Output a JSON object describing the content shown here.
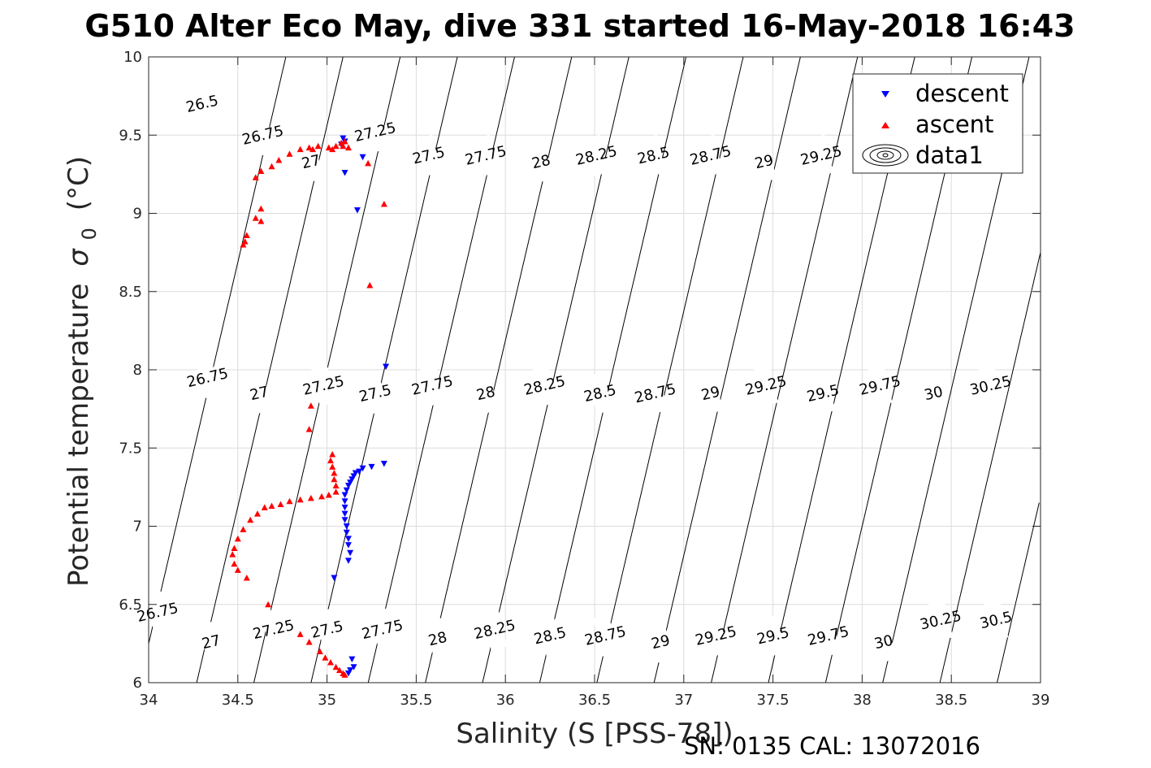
{
  "chart_data": {
    "type": "scatter",
    "title": "G510 Alter Eco May, dive 331 started 16-May-2018 16:43",
    "xlabel": "Salinity (S [PSS-78])",
    "ylabel": "Potential temperature",
    "ylabel_symbol": "σ",
    "ylabel_subscript": "0",
    "ylabel_unit": "(°C)",
    "xlim": [
      34,
      39
    ],
    "ylim": [
      6,
      10
    ],
    "xticks": [
      34,
      34.5,
      35,
      35.5,
      36,
      36.5,
      37,
      37.5,
      38,
      38.5,
      39
    ],
    "xtick_labels": [
      "34",
      "34.5",
      "35",
      "35.5",
      "36",
      "36.5",
      "37",
      "37.5",
      "38",
      "38.5",
      "39"
    ],
    "yticks": [
      6,
      6.5,
      7,
      7.5,
      8,
      8.5,
      9,
      9.5,
      10
    ],
    "ytick_labels": [
      "6",
      "6.5",
      "7",
      "7.5",
      "8",
      "8.5",
      "9",
      "9.5",
      "10"
    ],
    "grid": true,
    "legend_position": "top-right",
    "series": [
      {
        "name": "descent",
        "marker": "down-triangle",
        "color": "#0000ff",
        "points": [
          [
            35.09,
            9.48
          ],
          [
            35.1,
            9.46
          ],
          [
            35.08,
            9.44
          ],
          [
            35.2,
            9.36
          ],
          [
            35.1,
            9.26
          ],
          [
            35.17,
            9.02
          ],
          [
            35.33,
            8.02
          ],
          [
            35.32,
            7.4
          ],
          [
            35.25,
            7.38
          ],
          [
            35.2,
            7.37
          ],
          [
            35.18,
            7.35
          ],
          [
            35.16,
            7.34
          ],
          [
            35.15,
            7.32
          ],
          [
            35.14,
            7.3
          ],
          [
            35.13,
            7.28
          ],
          [
            35.12,
            7.26
          ],
          [
            35.11,
            7.23
          ],
          [
            35.1,
            7.2
          ],
          [
            35.1,
            7.16
          ],
          [
            35.1,
            7.12
          ],
          [
            35.1,
            7.08
          ],
          [
            35.1,
            7.04
          ],
          [
            35.11,
            7.0
          ],
          [
            35.11,
            6.96
          ],
          [
            35.12,
            6.92
          ],
          [
            35.12,
            6.88
          ],
          [
            35.13,
            6.83
          ],
          [
            35.12,
            6.78
          ],
          [
            35.04,
            6.67
          ],
          [
            35.14,
            6.15
          ],
          [
            35.15,
            6.1
          ],
          [
            35.13,
            6.08
          ],
          [
            35.12,
            6.06
          ]
        ]
      },
      {
        "name": "ascent",
        "marker": "up-triangle",
        "color": "#ff0000",
        "points": [
          [
            35.1,
            9.46
          ],
          [
            35.08,
            9.45
          ],
          [
            35.09,
            9.43
          ],
          [
            35.12,
            9.42
          ],
          [
            35.05,
            9.43
          ],
          [
            35.03,
            9.41
          ],
          [
            35.01,
            9.42
          ],
          [
            34.95,
            9.43
          ],
          [
            34.9,
            9.42
          ],
          [
            34.85,
            9.41
          ],
          [
            34.92,
            9.41
          ],
          [
            34.79,
            9.38
          ],
          [
            34.73,
            9.34
          ],
          [
            34.69,
            9.3
          ],
          [
            34.63,
            9.27
          ],
          [
            34.6,
            9.23
          ],
          [
            35.23,
            9.32
          ],
          [
            35.32,
            9.06
          ],
          [
            34.63,
            9.03
          ],
          [
            34.6,
            8.97
          ],
          [
            34.63,
            8.95
          ],
          [
            34.55,
            8.86
          ],
          [
            34.54,
            8.82
          ],
          [
            34.53,
            8.8
          ],
          [
            35.24,
            8.54
          ],
          [
            34.91,
            7.77
          ],
          [
            34.9,
            7.62
          ],
          [
            35.03,
            7.46
          ],
          [
            35.02,
            7.42
          ],
          [
            35.03,
            7.38
          ],
          [
            35.04,
            7.34
          ],
          [
            35.04,
            7.3
          ],
          [
            35.05,
            7.26
          ],
          [
            35.05,
            7.22
          ],
          [
            35.01,
            7.2
          ],
          [
            34.97,
            7.19
          ],
          [
            34.91,
            7.18
          ],
          [
            34.85,
            7.17
          ],
          [
            34.79,
            7.16
          ],
          [
            34.74,
            7.14
          ],
          [
            34.69,
            7.13
          ],
          [
            34.65,
            7.12
          ],
          [
            34.61,
            7.08
          ],
          [
            34.57,
            7.04
          ],
          [
            34.53,
            6.98
          ],
          [
            34.5,
            6.92
          ],
          [
            34.48,
            6.86
          ],
          [
            34.47,
            6.82
          ],
          [
            34.48,
            6.76
          ],
          [
            34.5,
            6.72
          ],
          [
            34.55,
            6.67
          ],
          [
            34.67,
            6.5
          ],
          [
            34.85,
            6.31
          ],
          [
            34.9,
            6.26
          ],
          [
            34.96,
            6.2
          ],
          [
            34.99,
            6.16
          ],
          [
            35.02,
            6.13
          ],
          [
            35.05,
            6.1
          ],
          [
            35.07,
            6.08
          ],
          [
            35.09,
            6.06
          ],
          [
            35.1,
            6.05
          ]
        ]
      }
    ],
    "contour_series_name": "data1",
    "contour_labels": [
      {
        "text": "26.5",
        "s": 34.3,
        "t": 9.7
      },
      {
        "text": "26.75",
        "s": 34.64,
        "t": 9.5
      },
      {
        "text": "27",
        "s": 34.91,
        "t": 9.33
      },
      {
        "text": "27.25",
        "s": 35.27,
        "t": 9.52
      },
      {
        "text": "27.5",
        "s": 35.57,
        "t": 9.37
      },
      {
        "text": "27.75",
        "s": 35.89,
        "t": 9.37
      },
      {
        "text": "28",
        "s": 36.2,
        "t": 9.33
      },
      {
        "text": "28.25",
        "s": 36.51,
        "t": 9.37
      },
      {
        "text": "28.5",
        "s": 36.83,
        "t": 9.37
      },
      {
        "text": "28.75",
        "s": 37.15,
        "t": 9.37
      },
      {
        "text": "29",
        "s": 37.45,
        "t": 9.33
      },
      {
        "text": "29.25",
        "s": 37.77,
        "t": 9.37
      },
      {
        "text": "26.75",
        "s": 34.33,
        "t": 7.95
      },
      {
        "text": "27",
        "s": 34.62,
        "t": 7.85
      },
      {
        "text": "27.25",
        "s": 34.98,
        "t": 7.9
      },
      {
        "text": "27.5",
        "s": 35.27,
        "t": 7.85
      },
      {
        "text": "27.75",
        "s": 35.59,
        "t": 7.9
      },
      {
        "text": "28",
        "s": 35.89,
        "t": 7.85
      },
      {
        "text": "28.25",
        "s": 36.22,
        "t": 7.9
      },
      {
        "text": "28.5",
        "s": 36.53,
        "t": 7.85
      },
      {
        "text": "28.75",
        "s": 36.84,
        "t": 7.85
      },
      {
        "text": "29",
        "s": 37.15,
        "t": 7.85
      },
      {
        "text": "29.25",
        "s": 37.46,
        "t": 7.9
      },
      {
        "text": "29.5",
        "s": 37.78,
        "t": 7.85
      },
      {
        "text": "29.75",
        "s": 38.1,
        "t": 7.9
      },
      {
        "text": "30",
        "s": 38.4,
        "t": 7.85
      },
      {
        "text": "30.25",
        "s": 38.72,
        "t": 7.9
      },
      {
        "text": "26.75",
        "s": 34.05,
        "t": 6.45
      },
      {
        "text": "27",
        "s": 34.35,
        "t": 6.26
      },
      {
        "text": "27.25",
        "s": 34.7,
        "t": 6.34
      },
      {
        "text": "27.5",
        "s": 35.0,
        "t": 6.34
      },
      {
        "text": "27.75",
        "s": 35.31,
        "t": 6.34
      },
      {
        "text": "28",
        "s": 35.62,
        "t": 6.28
      },
      {
        "text": "28.25",
        "s": 35.94,
        "t": 6.34
      },
      {
        "text": "28.5",
        "s": 36.25,
        "t": 6.3
      },
      {
        "text": "28.75",
        "s": 36.56,
        "t": 6.3
      },
      {
        "text": "29",
        "s": 36.87,
        "t": 6.26
      },
      {
        "text": "29.25",
        "s": 37.18,
        "t": 6.3
      },
      {
        "text": "29.5",
        "s": 37.5,
        "t": 6.3
      },
      {
        "text": "29.75",
        "s": 37.81,
        "t": 6.3
      },
      {
        "text": "30",
        "s": 38.12,
        "t": 6.26
      },
      {
        "text": "30.25",
        "s": 38.44,
        "t": 6.4
      },
      {
        "text": "30.5",
        "s": 38.75,
        "t": 6.4
      }
    ]
  },
  "footer": "SN: 0135  CAL: 13072016"
}
